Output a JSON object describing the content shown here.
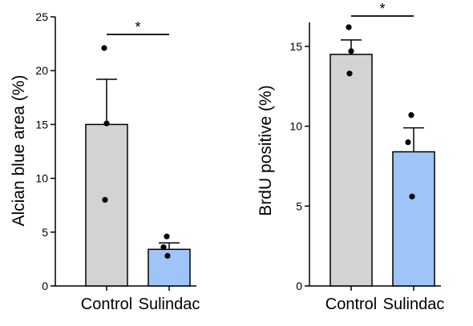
{
  "chart_data": [
    {
      "type": "bar",
      "categories": [
        "Control",
        "Sulindac"
      ],
      "values": [
        15.0,
        3.4
      ],
      "errors": [
        4.2,
        0.6
      ],
      "points": [
        [
          22.1,
          15.1,
          8.0
        ],
        [
          4.6,
          3.6,
          2.8
        ]
      ],
      "ylabel": "Alcian blue area (%)",
      "ylim": [
        0,
        25
      ],
      "yticks": [
        "0",
        "5",
        "10",
        "15",
        "20",
        "25"
      ],
      "significance": "*",
      "colors": [
        "#d3d3d3",
        "#9fc5f8"
      ]
    },
    {
      "type": "bar",
      "categories": [
        "Control",
        "Sulindac"
      ],
      "values": [
        14.5,
        8.4
      ],
      "errors": [
        0.9,
        1.5
      ],
      "points": [
        [
          16.2,
          14.7,
          13.3
        ],
        [
          10.7,
          9.0,
          5.6
        ]
      ],
      "ylabel": "BrdU positive (%)",
      "ylim": [
        0,
        16.5
      ],
      "yticks": [
        "0",
        "5",
        "10",
        "15"
      ],
      "significance": "*",
      "colors": [
        "#d3d3d3",
        "#9fc5f8"
      ]
    }
  ]
}
